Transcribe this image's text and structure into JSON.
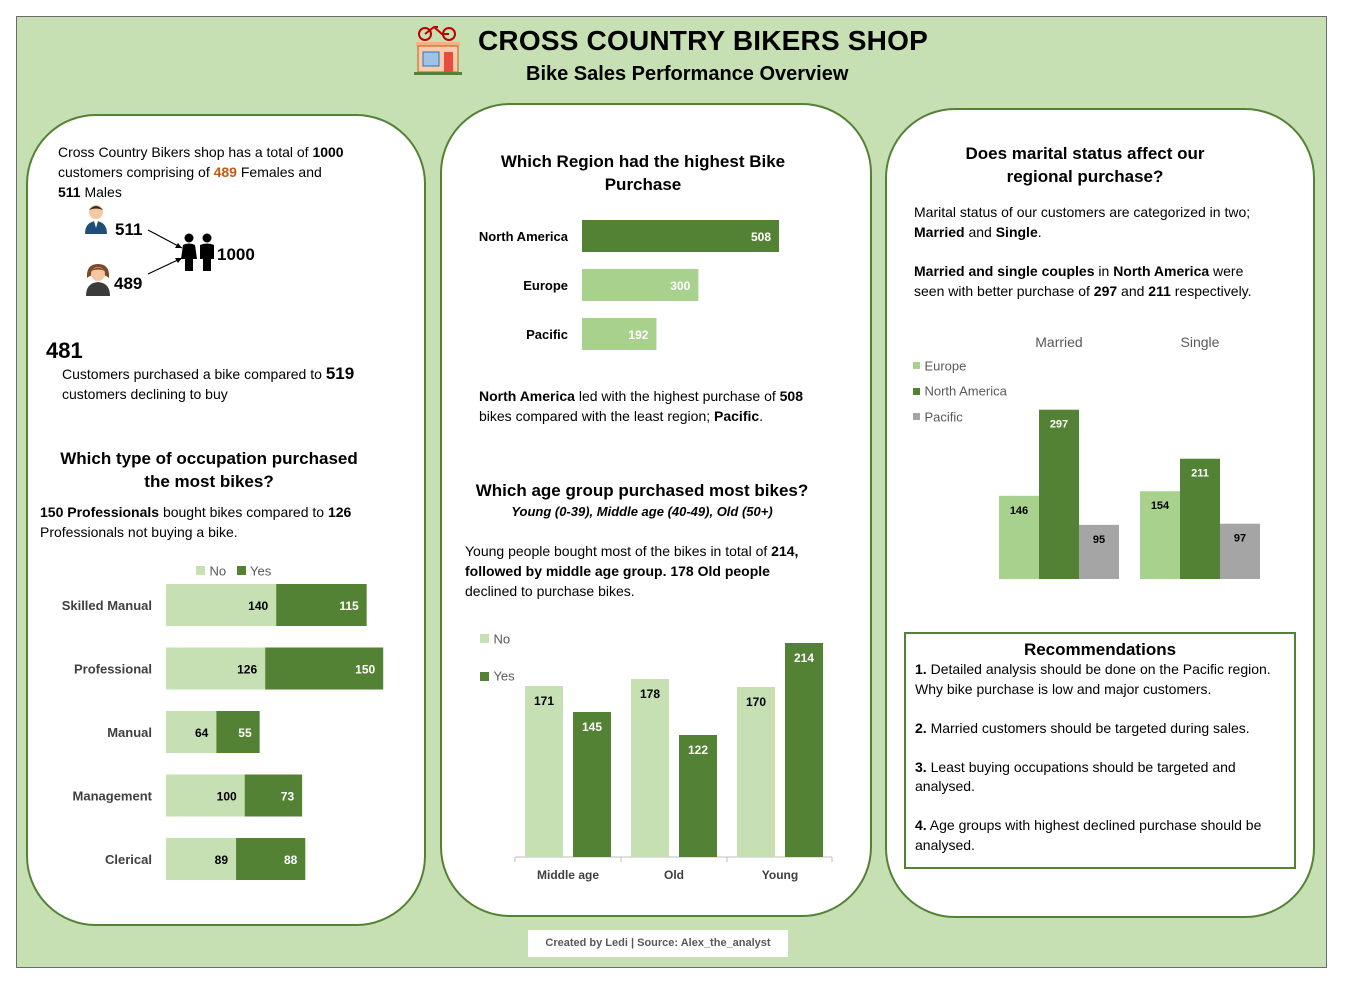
{
  "header": {
    "title": "CROSS COUNTRY BIKERS SHOP",
    "subtitle": "Bike Sales Performance Overview"
  },
  "colors": {
    "background": "#c6e0b4",
    "dark_green": "#548235",
    "light_green": "#c6e0b4",
    "mid_green": "#a9d18e",
    "grey": "#a5a5a5",
    "orange": "#c55a11"
  },
  "customers": {
    "intro_1": "Cross Country Bikers shop has a total of ",
    "total": "1000",
    "intro_2": "customers comprising of ",
    "females": "489",
    "intro_3": " Females and",
    "males": "511",
    "intro_4": " Males",
    "male_count": "511",
    "female_count": "489",
    "total_count": "1000",
    "purchased": "481",
    "purchase_text_1": "Customers purchased a bike compared to ",
    "declined": "519",
    "purchase_text_2": "customers declining to buy"
  },
  "occupation": {
    "heading": "Which type of occupation purchased the most bikes?",
    "summary_1": "150 Professionals",
    "summary_2": " bought bikes compared to ",
    "summary_3": "126",
    "summary_4": "Professionals not buying a bike."
  },
  "region": {
    "heading": "Which Region had the highest Bike Purchase",
    "summary_1": "North America",
    "summary_2": " led with the highest purchase of ",
    "summary_3": "508",
    "summary_4": "bikes compared with the least region; ",
    "summary_5": "Pacific",
    "summary_6": "."
  },
  "age": {
    "heading": "Which age group purchased most bikes?",
    "groups_note": "Young (0-39), Middle age (40-49), Old (50+)",
    "summary_1": "Young people bought most of the bikes in total of ",
    "summary_2": "214,",
    "summary_3": "followed by middle age group.  178 Old people",
    "summary_4": "declined to purchase bikes."
  },
  "marital": {
    "heading": "Does marital status affect our regional purchase?",
    "text_1": "Marital status of our customers are categorized in two;",
    "text_2a": "Married",
    "text_2b": " and ",
    "text_2c": "Single",
    "text_2d": ".",
    "text_3a": "Married and single couples",
    "text_3b": " in ",
    "text_3c": "North America",
    "text_3d": " were",
    "text_4a": "seen with better purchase of ",
    "text_4b": "297",
    "text_4c": " and ",
    "text_4d": "211",
    "text_4e": " respectively."
  },
  "recommendations": {
    "title": "Recommendations",
    "items": [
      {
        "num": "1.",
        "text": " Detailed analysis should be done on the Pacific region. Why bike purchase is low and major customers."
      },
      {
        "num": "2.",
        "text": " Married customers should be targeted during sales."
      },
      {
        "num": "3.",
        "text": " Least buying occupations should be targeted and analysed."
      },
      {
        "num": "4.",
        "text": " Age groups with highest declined purchase should be analysed."
      }
    ]
  },
  "footer": {
    "credit": "Created by Ledi | Source: Alex_the_analyst"
  },
  "chart_data": [
    {
      "id": "occupation",
      "type": "bar",
      "orientation": "horizontal",
      "stacked": true,
      "categories": [
        "Skilled Manual",
        "Professional",
        "Manual",
        "Management",
        "Clerical"
      ],
      "series": [
        {
          "name": "No",
          "values": [
            140,
            126,
            64,
            100,
            89
          ]
        },
        {
          "name": "Yes",
          "values": [
            115,
            150,
            55,
            73,
            88
          ]
        }
      ],
      "legend": "top"
    },
    {
      "id": "region",
      "type": "bar",
      "orientation": "horizontal",
      "categories": [
        "North America",
        "Europe",
        "Pacific"
      ],
      "values": [
        508,
        300,
        192
      ]
    },
    {
      "id": "age",
      "type": "bar",
      "categories": [
        "Middle age",
        "Old",
        "Young"
      ],
      "series": [
        {
          "name": "No",
          "values": [
            171,
            178,
            170
          ]
        },
        {
          "name": "Yes",
          "values": [
            145,
            122,
            214
          ]
        }
      ],
      "legend": "top-left"
    },
    {
      "id": "marital",
      "type": "bar",
      "categories": [
        "Married",
        "Single"
      ],
      "series": [
        {
          "name": "Europe",
          "values": [
            146,
            154
          ]
        },
        {
          "name": "North America",
          "values": [
            297,
            211
          ]
        },
        {
          "name": "Pacific",
          "values": [
            95,
            97
          ]
        }
      ],
      "legend": "left"
    }
  ]
}
